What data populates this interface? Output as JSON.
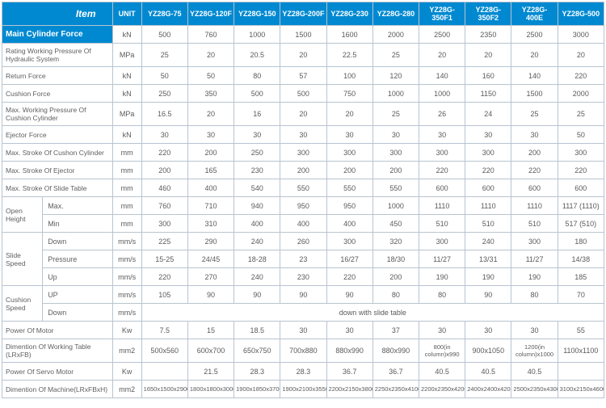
{
  "header": {
    "item": "Item",
    "unit": "UNIT",
    "models": [
      "YZ28G-75",
      "YZ28G-120F",
      "YZ28G-150",
      "YZ28G-200F",
      "YZ28G-230",
      "YZ28G-280",
      "YZ28G-350F1",
      "YZ28G-350F2",
      "YZ28G-400E",
      "YZ28G-500"
    ]
  },
  "rows": [
    {
      "type": "main",
      "label": "Main Cylinder Force",
      "unit": "kN",
      "vals": [
        "500",
        "760",
        "1000",
        "1500",
        "1600",
        "2000",
        "2500",
        "2350",
        "2500",
        "3000"
      ]
    },
    {
      "type": "plain",
      "label": "Rating Working Pressure Of  Hydraulic System",
      "unit": "MPa",
      "vals": [
        "25",
        "20",
        "20.5",
        "20",
        "22.5",
        "25",
        "20",
        "20",
        "20",
        "20"
      ]
    },
    {
      "type": "plain",
      "label": "Return Force",
      "unit": "kN",
      "vals": [
        "50",
        "50",
        "80",
        "57",
        "100",
        "120",
        "140",
        "160",
        "140",
        "220"
      ]
    },
    {
      "type": "plain",
      "label": "Cushion Force",
      "unit": "kN",
      "vals": [
        "250",
        "350",
        "500",
        "500",
        "750",
        "1000",
        "1000",
        "1150",
        "1500",
        "2000"
      ]
    },
    {
      "type": "plain",
      "label": "Max. Working Pressure Of  Cushion Cylinder",
      "unit": "MPa",
      "vals": [
        "16.5",
        "20",
        "16",
        "20",
        "20",
        "25",
        "26",
        "24",
        "25",
        "25"
      ]
    },
    {
      "type": "plain",
      "label": "Ejector Force",
      "unit": "kN",
      "vals": [
        "30",
        "30",
        "30",
        "30",
        "30",
        "30",
        "30",
        "30",
        "30",
        "50"
      ]
    },
    {
      "type": "plain",
      "label": "Max. Stroke Of Cushon Cylinder",
      "unit": "mm",
      "vals": [
        "220",
        "200",
        "250",
        "300",
        "300",
        "300",
        "300",
        "300",
        "200",
        "300"
      ]
    },
    {
      "type": "plain",
      "label": "Max. Stroke Of Ejector",
      "unit": "mm",
      "vals": [
        "200",
        "165",
        "230",
        "200",
        "200",
        "200",
        "220",
        "220",
        "220",
        "220"
      ]
    },
    {
      "type": "plain",
      "label": "Max. Stroke Of Slide Table",
      "unit": "mm",
      "vals": [
        "460",
        "400",
        "540",
        "550",
        "550",
        "550",
        "600",
        "600",
        "600",
        "600"
      ]
    }
  ],
  "openHeight": {
    "label": "Open Height",
    "max": {
      "label": "Max.",
      "unit": "mm",
      "vals": [
        "760",
        "710",
        "940",
        "950",
        "950",
        "1000",
        "1110",
        "1110",
        "1110",
        "1117 (1110)"
      ]
    },
    "min": {
      "label": "Min",
      "unit": "mm",
      "vals": [
        "300",
        "310",
        "400",
        "400",
        "400",
        "450",
        "510",
        "510",
        "510",
        "517 (510)"
      ]
    }
  },
  "slideSpeed": {
    "label": "Slide Speed",
    "down": {
      "label": "Down",
      "unit": "mm/s",
      "vals": [
        "225",
        "290",
        "240",
        "260",
        "300",
        "320",
        "300",
        "240",
        "300",
        "180"
      ]
    },
    "pressure": {
      "label": "Pressure",
      "unit": "mm/s",
      "vals": [
        "15-25",
        "24/45",
        "18-28",
        "23",
        "16/27",
        "18/30",
        "11/27",
        "13/31",
        "11/27",
        "14/38"
      ]
    },
    "up": {
      "label": "Up",
      "unit": "mm/s",
      "vals": [
        "220",
        "270",
        "240",
        "230",
        "220",
        "200",
        "190",
        "190",
        "190",
        "185"
      ]
    }
  },
  "cushionSpeed": {
    "label": "Cushion Speed",
    "up": {
      "label": "UP",
      "unit": "mm/s",
      "vals": [
        "105",
        "90",
        "90",
        "90",
        "90",
        "80",
        "80",
        "90",
        "80",
        "70"
      ]
    },
    "down": {
      "label": "Down",
      "unit": "mm/s",
      "merged": "down with slide table"
    }
  },
  "tail": [
    {
      "label": "Power Of Motor",
      "unit": "Kw",
      "vals": [
        "7.5",
        "15",
        "18.5",
        "30",
        "30",
        "37",
        "30",
        "30",
        "30",
        "55"
      ]
    },
    {
      "label": "Dimention Of Working Table (LRxFB)",
      "unit": "mm2",
      "vals": [
        "500x560",
        "600x700",
        "650x750",
        "700x880",
        "880x990",
        "880x990",
        "800(in column)x990",
        "900x1050",
        "1200(in column)x1000",
        "1100x1100"
      ],
      "small": [
        6,
        8
      ]
    },
    {
      "label": "Power Of Servo Motor",
      "unit": "Kw",
      "vals": [
        "",
        "21.5",
        "28.3",
        "28.3",
        "36.7",
        "36.7",
        "40.5",
        "40.5",
        "40.5",
        ""
      ]
    },
    {
      "label": "Dimention Of Machine(LRxFBxH)",
      "unit": "mm2",
      "vals": [
        "1650x1500x2900",
        "1800x1800x3000",
        "1900x1850x3700",
        "1900x2100x3550",
        "2200x2150x3800",
        "2250x2350x4100",
        "2200x2350x4200",
        "2400x2400x4200",
        "2500x2350x4300",
        "3100x2150x4600"
      ],
      "smallAll": true
    }
  ]
}
